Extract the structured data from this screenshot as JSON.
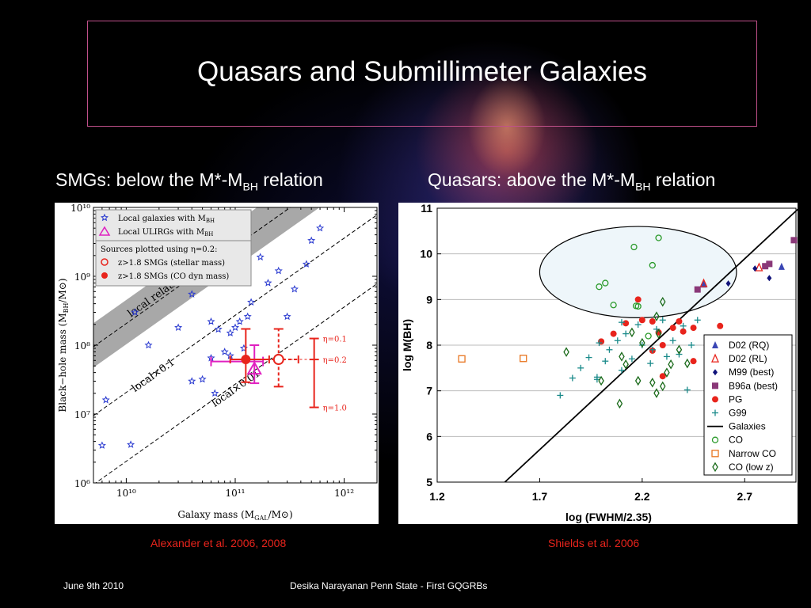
{
  "slide": {
    "title": "Quasars and Submillimeter Galaxies",
    "left_heading": {
      "pre": "SMGs: below the M*-M",
      "sub": "BH",
      "post": " relation"
    },
    "right_heading": {
      "pre": "Quasars: above the M*-M",
      "sub": "BH",
      "post": " relation"
    },
    "left_credit": "Alexander et al. 2006, 2008",
    "right_credit": "Shields et al. 2006",
    "footer_date": "June 9th 2010",
    "footer_center": "Desika Narayanan   Penn State - First GQGRBs",
    "colors": {
      "credit": "#e8241c",
      "title_border": "#c0508a",
      "background": "#000000"
    }
  },
  "chart_data": [
    {
      "type": "scatter",
      "xscale": "log",
      "yscale": "log",
      "xlabel": "Galaxy mass (M",
      "xlabel_sub": "GAL",
      "xlabel_tail": "/M⊙)",
      "ylabel": "Black−hole mass (M",
      "ylabel_sub": "BH",
      "ylabel_tail": "/M⊙)",
      "xlim": [
        5000000000.0,
        2000000000000.0
      ],
      "ylim": [
        1000000.0,
        10000000000.0
      ],
      "xticks": [
        {
          "v": 10000000000.0,
          "label": "10¹⁰"
        },
        {
          "v": 100000000000.0,
          "label": "10¹¹"
        },
        {
          "v": 1000000000000.0,
          "label": "10¹²"
        }
      ],
      "yticks": [
        {
          "v": 1000000.0,
          "label": "10⁶"
        },
        {
          "v": 10000000.0,
          "label": "10⁷"
        },
        {
          "v": 100000000.0,
          "label": "10⁸"
        },
        {
          "v": 1000000000.0,
          "label": "10⁹"
        },
        {
          "v": 10000000000.0,
          "label": "10¹⁰"
        }
      ],
      "legend": {
        "placement": "top-left",
        "entries": [
          "Local galaxies with M",
          "Local ULIRGs with M"
        ],
        "entry_sub": "BH",
        "note": "Sources plotted using η=0.2:",
        "smg_entries": [
          "z>1.8 SMGs (stellar mass)",
          "z>1.8 SMGs (CO dyn mass)"
        ]
      },
      "band_label": "local relationship",
      "line_labels": [
        "local×0.1",
        "local×0.01"
      ],
      "eta_labels": [
        "η=0.1",
        "η=0.2",
        "η=1.0"
      ],
      "local_galaxies": [
        [
          6000000000.0,
          3500000.0
        ],
        [
          11000000000.0,
          3600000.0
        ],
        [
          6500000000.0,
          16000000.0
        ],
        [
          16000000000.0,
          100000000.0
        ],
        [
          12000000000.0,
          300000000.0
        ],
        [
          30000000000.0,
          180000000.0
        ],
        [
          40000000000.0,
          550000000.0
        ],
        [
          60000000000.0,
          220000000.0
        ],
        [
          70000000000.0,
          170000000.0
        ],
        [
          80000000000.0,
          80000000.0
        ],
        [
          90000000000.0,
          150000000.0
        ],
        [
          100000000000.0,
          180000000.0
        ],
        [
          110000000000.0,
          220000000.0
        ],
        [
          130000000000.0,
          260000000.0
        ],
        [
          65000000000.0,
          20000000.0
        ],
        [
          120000000000.0,
          90000000.0
        ],
        [
          90000000000.0,
          70000000.0
        ],
        [
          140000000000.0,
          420000000.0
        ],
        [
          200000000000.0,
          800000000.0
        ],
        [
          250000000000.0,
          1200000000.0
        ],
        [
          300000000000.0,
          260000000.0
        ],
        [
          350000000000.0,
          650000000.0
        ],
        [
          450000000000.0,
          1500000000.0
        ],
        [
          500000000000.0,
          3300000000.0
        ],
        [
          600000000000.0,
          5000000000.0
        ],
        [
          50000000000.0,
          32000000.0
        ],
        [
          60000000000.0,
          65000000.0
        ],
        [
          40000000000.0,
          30000000.0
        ],
        [
          170000000000.0,
          1900000000.0
        ]
      ],
      "ulirgs": [
        [
          150000000000.0,
          45000000.0
        ]
      ],
      "smg_co": {
        "x": 125000000000.0,
        "y": 62000000.0,
        "xerr": [
          35000000000.0,
          80000000000.0
        ],
        "yerr": [
          33000000.0,
          110000000.0
        ]
      },
      "smg_stellar": {
        "x": 250000000000.0,
        "y": 62000000.0,
        "xerr": [
          130000000000.0,
          130000000000.0
        ],
        "yerr": [
          37000000.0,
          110000000.0
        ]
      },
      "eta_bar": {
        "x": 530000000000.0,
        "values": [
          125000000.0,
          62000000.0,
          12500000.0
        ]
      }
    },
    {
      "type": "scatter",
      "xlabel": "log (FWHM/2.35)",
      "ylabel": "log M(BH)",
      "xlim": [
        1.2,
        2.95
      ],
      "ylim": [
        5,
        11
      ],
      "xticks": [
        1.2,
        1.7,
        2.2,
        2.7
      ],
      "yticks": [
        5,
        6,
        7,
        8,
        9,
        10,
        11
      ],
      "grid": "horizontal",
      "legend": {
        "placement": "bottom-right"
      },
      "galaxies_line": [
        [
          1.53,
          5
        ],
        [
          2.96,
          10.98
        ]
      ],
      "series": [
        {
          "name": "D02 (RQ)",
          "color": "#3a46b4",
          "marker": "triangle",
          "points": [
            [
              2.5,
              9.33
            ],
            [
              2.88,
              9.72
            ]
          ]
        },
        {
          "name": "D02 (RL)",
          "color": "#e8241c",
          "marker": "triangle-open",
          "points": [
            [
              2.5,
              9.35
            ],
            [
              2.77,
              9.7
            ]
          ]
        },
        {
          "name": "M99 (best)",
          "color": "#10127a",
          "marker": "diamond",
          "points": [
            [
              2.62,
              9.35
            ],
            [
              2.75,
              9.68
            ],
            [
              2.82,
              9.47
            ]
          ]
        },
        {
          "name": "B96a (best)",
          "color": "#8a3878",
          "marker": "square",
          "points": [
            [
              2.47,
              9.22
            ],
            [
              2.8,
              9.73
            ],
            [
              2.82,
              9.78
            ],
            [
              2.94,
              10.3
            ]
          ]
        },
        {
          "name": "PG",
          "color": "#e8241c",
          "marker": "circle",
          "points": [
            [
              2.0,
              8.08
            ],
            [
              2.06,
              8.25
            ],
            [
              2.12,
              8.48
            ],
            [
              2.18,
              9.0
            ],
            [
              2.2,
              8.55
            ],
            [
              2.25,
              8.52
            ],
            [
              2.28,
              8.28
            ],
            [
              2.3,
              8.0
            ],
            [
              2.35,
              8.38
            ],
            [
              2.38,
              8.52
            ],
            [
              2.4,
              8.3
            ],
            [
              2.45,
              8.38
            ],
            [
              2.45,
              7.65
            ],
            [
              2.58,
              8.42
            ],
            [
              2.25,
              7.88
            ],
            [
              2.3,
              7.32
            ]
          ]
        },
        {
          "name": "G99",
          "color": "#1a8a8a",
          "marker": "plus",
          "points": [
            [
              1.8,
              6.9
            ],
            [
              1.86,
              7.28
            ],
            [
              1.9,
              7.5
            ],
            [
              1.94,
              7.73
            ],
            [
              1.98,
              7.3
            ],
            [
              1.99,
              8.05
            ],
            [
              2.02,
              7.65
            ],
            [
              2.04,
              7.9
            ],
            [
              2.08,
              8.1
            ],
            [
              2.1,
              8.5
            ],
            [
              2.12,
              8.25
            ],
            [
              2.15,
              7.7
            ],
            [
              2.18,
              8.45
            ],
            [
              2.2,
              8.0
            ],
            [
              2.24,
              7.6
            ],
            [
              2.25,
              7.9
            ],
            [
              2.27,
              8.35
            ],
            [
              2.3,
              8.55
            ],
            [
              2.32,
              7.75
            ],
            [
              2.35,
              8.1
            ],
            [
              2.38,
              7.8
            ],
            [
              2.4,
              8.42
            ],
            [
              2.42,
              7.02
            ],
            [
              2.44,
              8.0
            ],
            [
              2.47,
              8.55
            ],
            [
              2.1,
              7.45
            ],
            [
              1.98,
              7.25
            ]
          ]
        },
        {
          "name": "Galaxies",
          "color": "#000000",
          "marker": "line",
          "points": []
        },
        {
          "name": "CO",
          "color": "#2a9a2a",
          "marker": "circle-open",
          "points": [
            [
              1.99,
              9.28
            ],
            [
              2.02,
              9.36
            ],
            [
              2.06,
              8.88
            ],
            [
              2.16,
              10.15
            ],
            [
              2.17,
              8.86
            ],
            [
              2.18,
              8.85
            ],
            [
              2.25,
              9.75
            ],
            [
              2.28,
              10.35
            ],
            [
              2.23,
              8.2
            ]
          ]
        },
        {
          "name": "Narrow CO",
          "color": "#e87520",
          "marker": "square-open",
          "points": [
            [
              1.32,
              7.7
            ],
            [
              1.62,
              7.71
            ]
          ]
        },
        {
          "name": "CO (low z)",
          "color": "#1a6a1a",
          "marker": "diamond-open",
          "points": [
            [
              1.83,
              7.85
            ],
            [
              2.0,
              7.22
            ],
            [
              2.09,
              6.72
            ],
            [
              2.12,
              7.58
            ],
            [
              2.15,
              8.28
            ],
            [
              2.2,
              8.05
            ],
            [
              2.25,
              7.18
            ],
            [
              2.27,
              6.95
            ],
            [
              2.28,
              8.25
            ],
            [
              2.3,
              8.95
            ],
            [
              2.34,
              7.58
            ],
            [
              2.38,
              7.9
            ],
            [
              2.42,
              7.6
            ],
            [
              2.52,
              7.9
            ],
            [
              2.1,
              7.75
            ],
            [
              2.18,
              7.22
            ],
            [
              2.32,
              7.4
            ],
            [
              2.27,
              8.63
            ],
            [
              2.3,
              7.1
            ]
          ]
        }
      ],
      "highlight_ellipse": {
        "cx": 2.18,
        "cy": 9.6,
        "rx_data": 0.48,
        "ry_data": 1.0
      }
    }
  ]
}
